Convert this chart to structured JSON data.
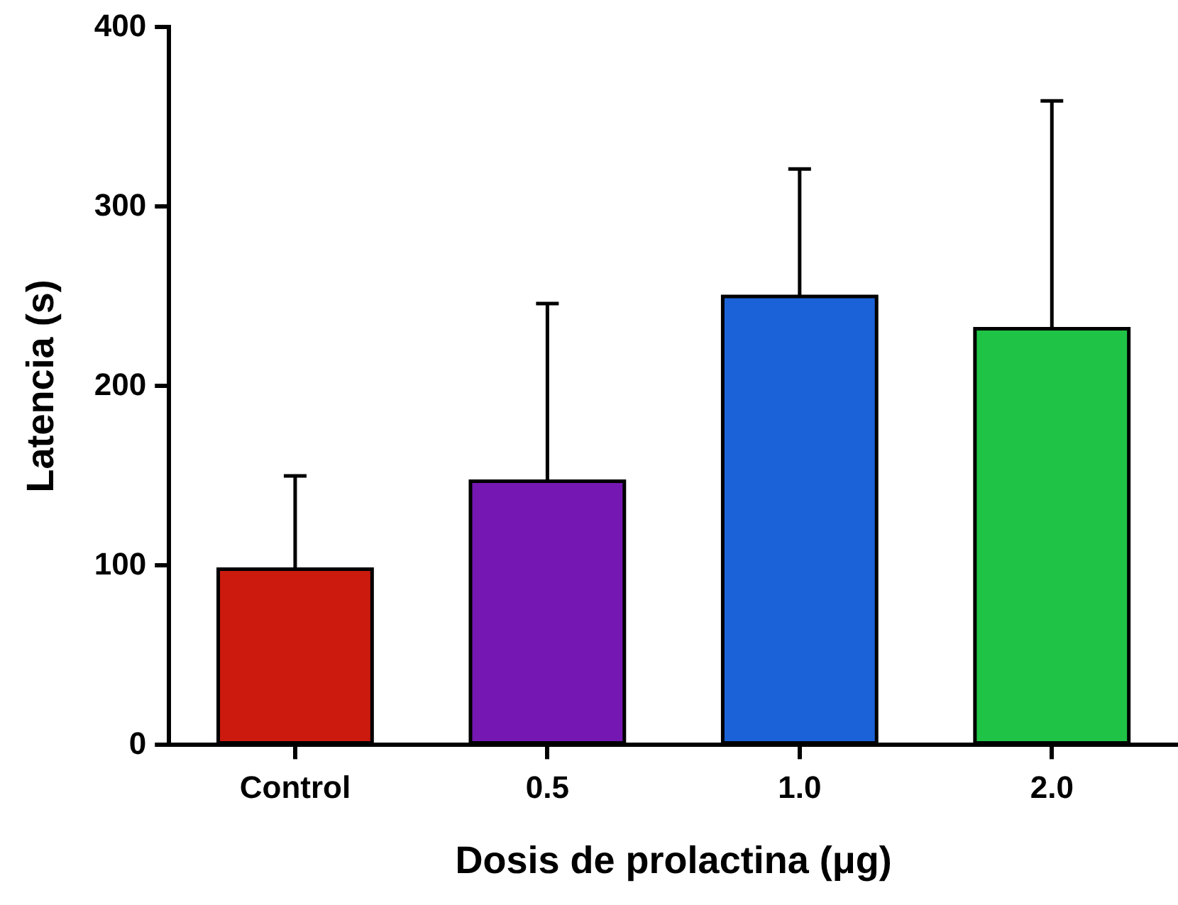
{
  "chart_data": {
    "type": "bar",
    "xlabel": "Dosis de prolactina (μg)",
    "ylabel": "Latencia (s)",
    "categories": [
      "Control",
      "0.5",
      "1.0",
      "2.0"
    ],
    "values": [
      98,
      147,
      250,
      232
    ],
    "colors": [
      "#cc1a0e",
      "#7518b3",
      "#1b62d8",
      "#1fc446"
    ],
    "errors": [
      [
        98,
        150
      ],
      [
        147,
        246
      ],
      [
        250,
        321
      ],
      [
        232,
        359
      ]
    ],
    "ylim": [
      0,
      400
    ],
    "yticks": [
      0,
      100,
      200,
      300,
      400
    ],
    "grid": false,
    "legend": false
  }
}
